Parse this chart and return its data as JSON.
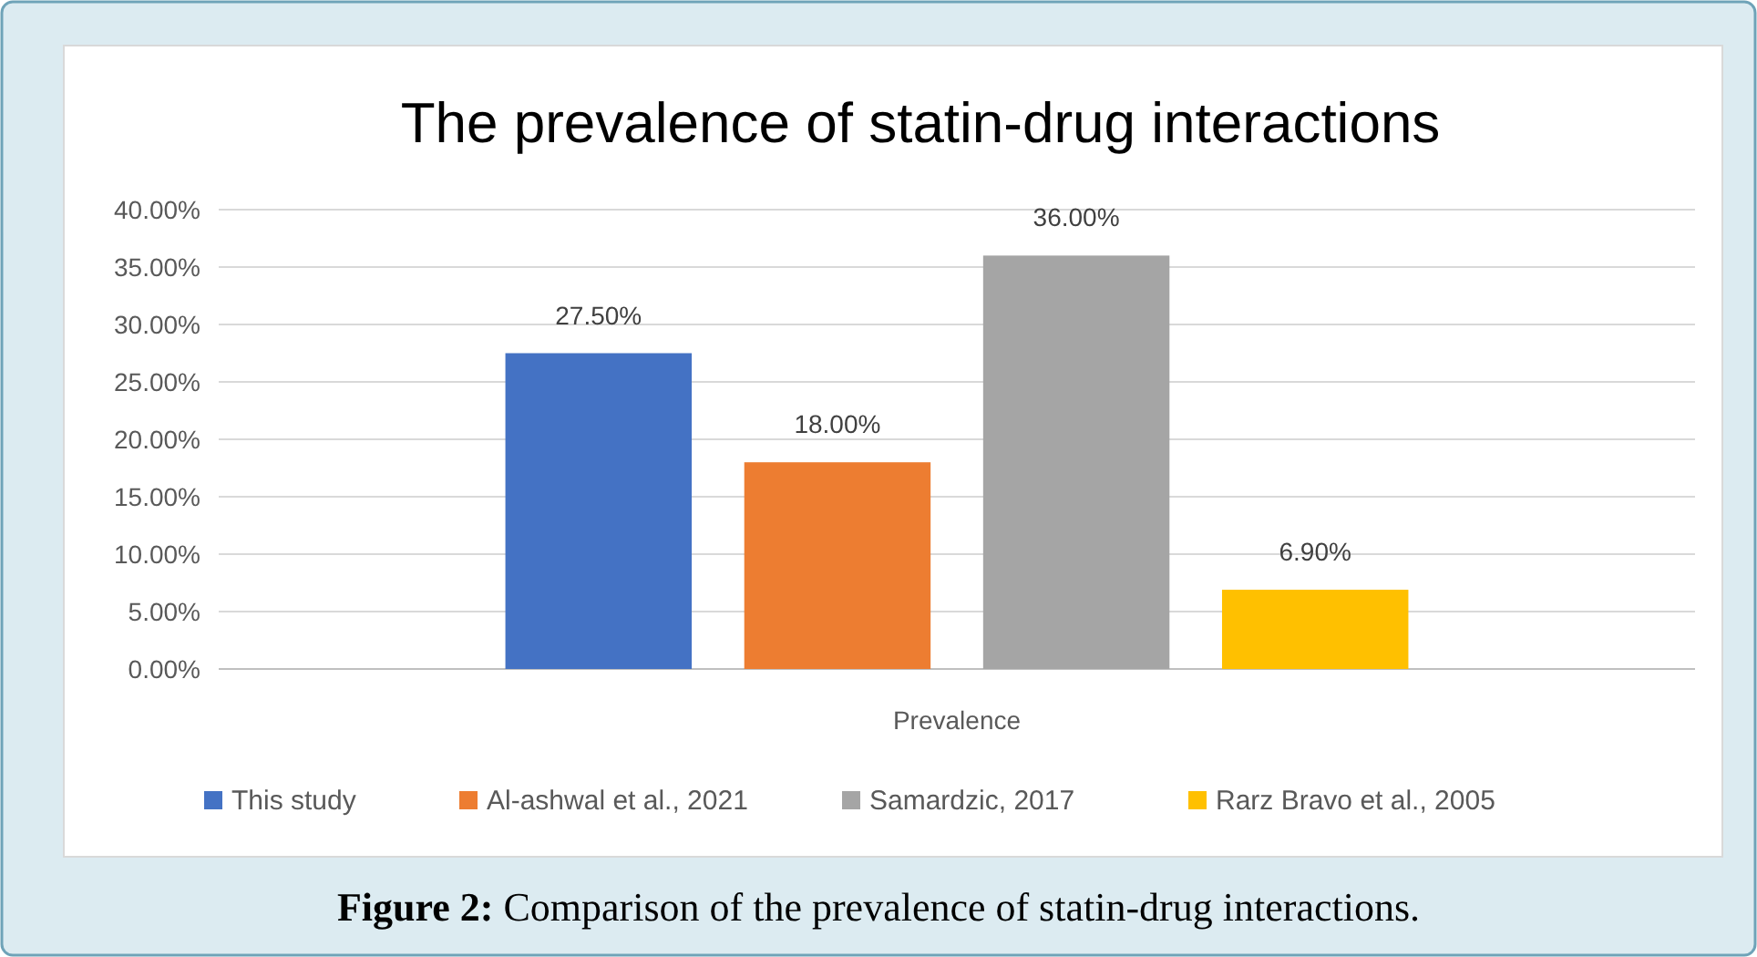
{
  "chart_data": {
    "type": "bar",
    "title": "The prevalence of statin-drug interactions",
    "categories": [
      "Prevalence"
    ],
    "series": [
      {
        "name": "This study",
        "color": "#4472c4",
        "values": [
          27.5
        ],
        "value_labels": [
          "27.50%"
        ]
      },
      {
        "name": "Al-ashwal et al., 2021",
        "color": "#ed7d31",
        "values": [
          18
        ],
        "value_labels": [
          "18.00%"
        ]
      },
      {
        "name": "Samardzic, 2017",
        "color": "#a5a5a5",
        "values": [
          36
        ],
        "value_labels": [
          "36.00%"
        ]
      },
      {
        "name": "Rarz Bravo et al., 2005",
        "color": "#ffc000",
        "values": [
          6.9
        ],
        "value_labels": [
          "6.90%"
        ]
      }
    ],
    "ylim": [
      0,
      40
    ],
    "yticks": [
      {
        "value": 0,
        "label": "0.00%"
      },
      {
        "value": 5,
        "label": "5.00%"
      },
      {
        "value": 10,
        "label": "10.00%"
      },
      {
        "value": 15,
        "label": "15.00%"
      },
      {
        "value": 20,
        "label": "20.00%"
      },
      {
        "value": 25,
        "label": "25.00%"
      },
      {
        "value": 30,
        "label": "30.00%"
      },
      {
        "value": 35,
        "label": "35.00%"
      },
      {
        "value": 40,
        "label": "40.00%"
      }
    ],
    "grid": "y",
    "legend": "bottom",
    "annotations": [
      "Figure 2: Comparison of the prevalence of statin-drug interactions."
    ]
  }
}
